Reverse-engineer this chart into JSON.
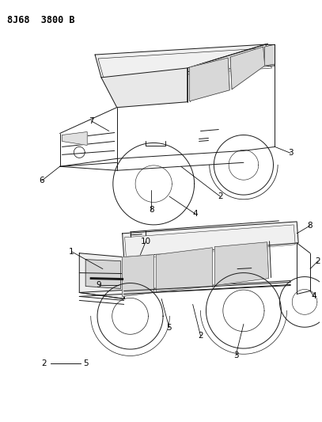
{
  "title": "8J68  3800 B",
  "title_fontsize": 8.5,
  "background_color": "#ffffff",
  "figsize": [
    4.07,
    5.33
  ],
  "dpi": 100,
  "line_color": "#1a1a1a",
  "line_lw": 0.7,
  "callout_fontsize": 7.5
}
